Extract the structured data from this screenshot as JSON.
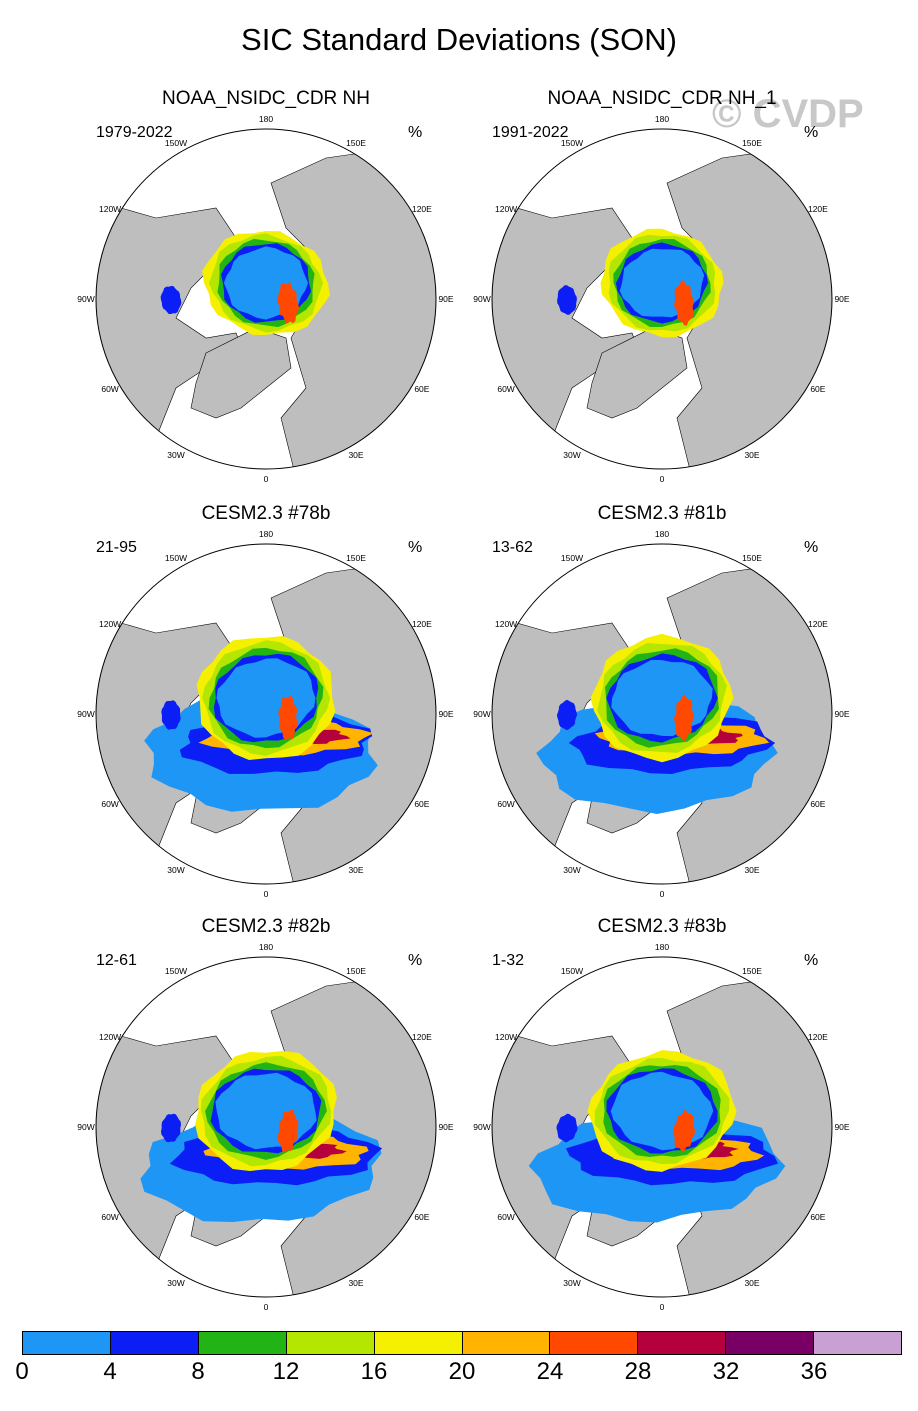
{
  "title": "SIC Standard Deviations (SON)",
  "watermark": "© CVDP",
  "unit": "%",
  "longitude_labels": [
    "180",
    "150E",
    "120E",
    "90E",
    "60E",
    "30E",
    "0",
    "30W",
    "60W",
    "90W",
    "120W",
    "150W"
  ],
  "panels": [
    {
      "title": "NOAA_NSIDC_CDR NH",
      "range": "1979-2022"
    },
    {
      "title": "NOAA_NSIDC_CDR NH_1",
      "range": "1991-2022"
    },
    {
      "title": "CESM2.3 #78b",
      "range": "21-95"
    },
    {
      "title": "CESM2.3 #81b",
      "range": "13-62"
    },
    {
      "title": "CESM2.3 #82b",
      "range": "12-61"
    },
    {
      "title": "CESM2.3 #83b",
      "range": "1-32"
    }
  ],
  "colorbar": {
    "labels": [
      "0",
      "4",
      "8",
      "12",
      "16",
      "20",
      "24",
      "28",
      "32",
      "36"
    ],
    "colors": [
      "#1e96f5",
      "#0a1ef5",
      "#22b414",
      "#b4e600",
      "#f5f000",
      "#ffb400",
      "#ff4800",
      "#b4003c",
      "#780064",
      "#c8a0d2"
    ]
  },
  "colors": {
    "land": "#bebebe",
    "ocean": "#ffffff"
  }
}
